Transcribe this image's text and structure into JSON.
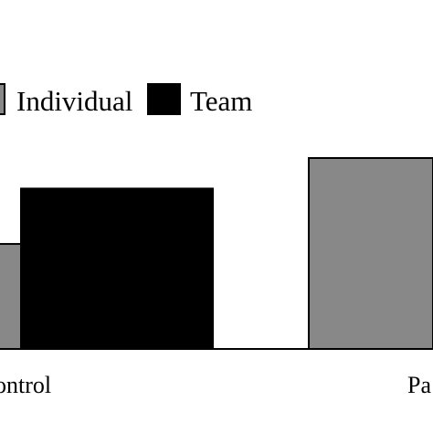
{
  "chart_data": {
    "type": "bar",
    "categories": [
      "ontrol",
      "Pa"
    ],
    "series": [
      {
        "name": "Individual",
        "color": "#888888",
        "values": [
          0.55,
          1.0
        ]
      },
      {
        "name": "Team",
        "color": "#000000",
        "values": [
          0.84,
          null
        ]
      }
    ],
    "title": "",
    "xlabel": "",
    "ylabel": "",
    "ylim": [
      0,
      1.0
    ],
    "grid": false,
    "legend_position": "top"
  }
}
